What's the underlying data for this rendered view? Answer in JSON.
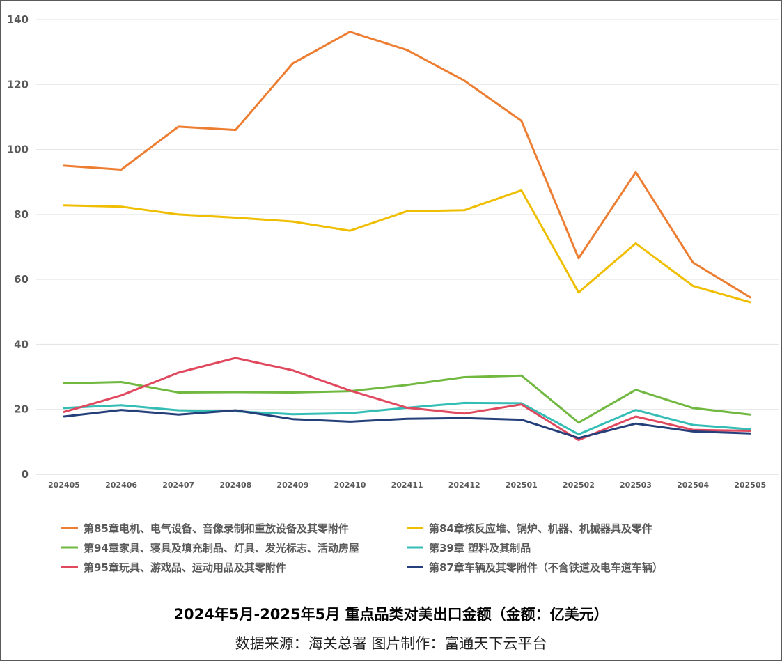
{
  "chart_data": {
    "type": "line",
    "title": "2024年5月-2025年5月 重点品类对美出口金额（金额：亿美元）",
    "source": "数据来源：海关总署 图片制作：富通天下云平台",
    "categories": [
      "202405",
      "202406",
      "202407",
      "202408",
      "202409",
      "202410",
      "202411",
      "202412",
      "202501",
      "202502",
      "202503",
      "202504",
      "202505"
    ],
    "ylim": [
      0,
      140
    ],
    "yticks": [
      0,
      20,
      40,
      60,
      80,
      100,
      120,
      140
    ],
    "grid": true,
    "legend_position": "bottom",
    "series": [
      {
        "name": "第85章电机、电气设备、音像录制和重放设备及其零附件",
        "color": "#ED7D31",
        "values": [
          95.0,
          93.8,
          107.0,
          106.0,
          126.5,
          136.2,
          130.6,
          121.2,
          108.8,
          66.5,
          93.0,
          65.2,
          54.5
        ]
      },
      {
        "name": "第84章核反应堆、锅炉、机器、机械器具及零件",
        "color": "#F0BE00",
        "values": [
          82.8,
          82.4,
          80.0,
          79.0,
          77.8,
          75.0,
          81.0,
          81.3,
          87.4,
          56.0,
          71.1,
          58.0,
          53.0
        ]
      },
      {
        "name": "第94章家具、寝具及填充制品、灯具、发光标志、活动房屋",
        "color": "#70B840",
        "values": [
          28.0,
          28.4,
          25.2,
          25.3,
          25.2,
          25.6,
          27.5,
          29.9,
          30.4,
          15.9,
          26.0,
          20.4,
          18.4
        ]
      },
      {
        "name": "第39章  塑料及其制品",
        "color": "#33BDB5",
        "values": [
          20.4,
          21.3,
          19.7,
          19.4,
          18.5,
          18.8,
          20.5,
          22.0,
          21.9,
          12.3,
          19.8,
          15.2,
          13.9
        ]
      },
      {
        "name": "第95章玩具、游戏品、运动用品及其零附件",
        "color": "#E0485E",
        "values": [
          19.2,
          24.3,
          31.3,
          35.8,
          32.0,
          25.8,
          20.5,
          18.7,
          21.5,
          10.6,
          17.8,
          13.7,
          13.4
        ]
      },
      {
        "name": "第87章车辆及其零附件（不含铁道及电车道车辆）",
        "color": "#243F7A",
        "values": [
          17.8,
          19.8,
          18.4,
          19.7,
          17.0,
          16.2,
          17.1,
          17.3,
          16.8,
          11.2,
          15.6,
          13.2,
          12.6
        ]
      }
    ]
  }
}
